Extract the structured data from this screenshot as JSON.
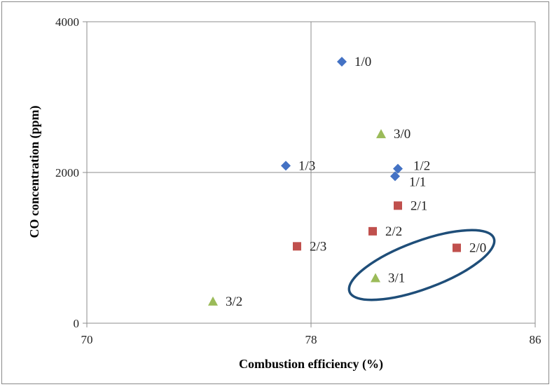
{
  "chart_data": {
    "type": "scatter",
    "xlabel": "Combustion efficiency (%)",
    "ylabel": "CO concentration (ppm)",
    "xlim": [
      70,
      86
    ],
    "ylim": [
      0,
      4000
    ],
    "xticks": [
      "70",
      "78",
      "86"
    ],
    "yticks": [
      "0",
      "2000",
      "4000"
    ],
    "grid": true,
    "legend": "none",
    "series": [
      {
        "marker": "diamond",
        "color": "#4472C4",
        "points": [
          {
            "label": "1/0",
            "x": 79.1,
            "y": 3470
          },
          {
            "label": "1/3",
            "x": 77.1,
            "y": 2090
          },
          {
            "label": "1/2",
            "x": 81.1,
            "y": 2050
          },
          {
            "label": "1/1",
            "x": 81.0,
            "y": 1950
          }
        ]
      },
      {
        "marker": "square",
        "color": "#C0504D",
        "points": [
          {
            "label": "2/1",
            "x": 81.1,
            "y": 1560
          },
          {
            "label": "2/2",
            "x": 80.2,
            "y": 1220
          },
          {
            "label": "2/3",
            "x": 77.5,
            "y": 1020
          },
          {
            "label": "2/0",
            "x": 83.2,
            "y": 1000
          }
        ]
      },
      {
        "marker": "triangle",
        "color": "#9BBB59",
        "points": [
          {
            "label": "3/0",
            "x": 80.5,
            "y": 2510
          },
          {
            "label": "3/1",
            "x": 80.3,
            "y": 600
          },
          {
            "label": "3/2",
            "x": 74.5,
            "y": 290
          }
        ]
      }
    ],
    "annotation": {
      "shape": "ellipse",
      "color": "#1F4E79",
      "encloses": [
        "2/0",
        "3/1"
      ]
    }
  }
}
